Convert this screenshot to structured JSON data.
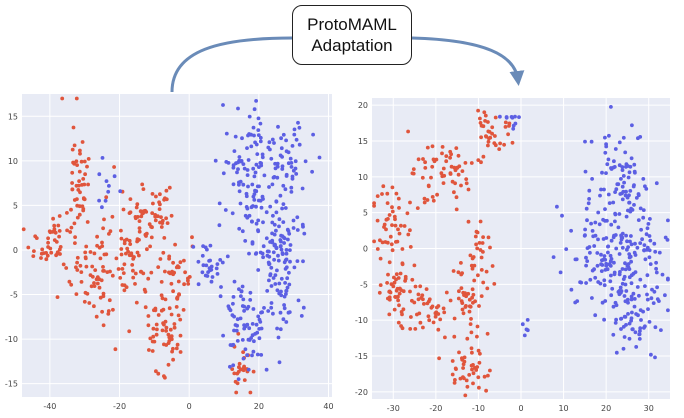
{
  "label": {
    "line1": "ProtoMAML",
    "line2": "Adaptation"
  },
  "colors": {
    "panel_bg": "#e8ebf5",
    "grid": "#ffffff",
    "arrow": "#6a8bb8",
    "class_a": "#e0553c",
    "class_b": "#5c5fe3",
    "tick_text": "#444444"
  },
  "chart_data": [
    {
      "type": "scatter",
      "title": "",
      "xlabel": "",
      "ylabel": "",
      "xlim": [
        -48,
        41
      ],
      "ylim": [
        -16.5,
        17.5
      ],
      "xticks": [
        -40,
        -20,
        0,
        20,
        40
      ],
      "yticks": [
        -15,
        -10,
        -5,
        0,
        5,
        10,
        15
      ],
      "series": [
        {
          "color": "class_a",
          "clusters": [
            {
              "cx": -38,
              "cy": 1,
              "rx": 7,
              "ry": 4,
              "n": 55
            },
            {
              "cx": -32,
              "cy": 8,
              "rx": 3,
              "ry": 7,
              "n": 45
            },
            {
              "cx": -26,
              "cy": -3,
              "rx": 5,
              "ry": 5,
              "n": 55
            },
            {
              "cx": -17,
              "cy": 0,
              "rx": 6,
              "ry": 6,
              "n": 70
            },
            {
              "cx": -10,
              "cy": 4,
              "rx": 5,
              "ry": 3,
              "n": 40
            },
            {
              "cx": -7,
              "cy": -9,
              "rx": 5,
              "ry": 4,
              "n": 55
            },
            {
              "cx": -4,
              "cy": -3,
              "rx": 4,
              "ry": 4,
              "n": 35
            },
            {
              "cx": 15,
              "cy": -13,
              "rx": 3,
              "ry": 3,
              "n": 25
            }
          ]
        },
        {
          "color": "class_b",
          "clusters": [
            {
              "cx": 17,
              "cy": 9,
              "rx": 7,
              "ry": 6,
              "n": 90
            },
            {
              "cx": 25,
              "cy": 0,
              "rx": 8,
              "ry": 8,
              "n": 150
            },
            {
              "cx": 28,
              "cy": 10,
              "rx": 5,
              "ry": 4,
              "n": 40
            },
            {
              "cx": 16,
              "cy": -8,
              "rx": 6,
              "ry": 5,
              "n": 70
            },
            {
              "cx": 6,
              "cy": -2,
              "rx": 4,
              "ry": 3,
              "n": 30
            },
            {
              "cx": -24,
              "cy": 8,
              "rx": 3,
              "ry": 3,
              "n": 10
            }
          ]
        }
      ]
    },
    {
      "type": "scatter",
      "title": "",
      "xlabel": "",
      "ylabel": "",
      "xlim": [
        -35,
        35
      ],
      "ylim": [
        -21,
        21
      ],
      "xticks": [
        -30,
        -20,
        -10,
        0,
        10,
        20,
        30
      ],
      "yticks": [
        -20,
        -15,
        -10,
        -5,
        0,
        5,
        10,
        15,
        20
      ],
      "series": [
        {
          "color": "class_a",
          "clusters": [
            {
              "cx": -18,
              "cy": 10,
              "rx": 7,
              "ry": 4,
              "n": 60
            },
            {
              "cx": -7,
              "cy": 16,
              "rx": 5,
              "ry": 3,
              "n": 35
            },
            {
              "cx": -30,
              "cy": 3,
              "rx": 4,
              "ry": 5,
              "n": 45
            },
            {
              "cx": -29,
              "cy": -6,
              "rx": 4,
              "ry": 5,
              "n": 45
            },
            {
              "cx": -22,
              "cy": -9,
              "rx": 6,
              "ry": 3,
              "n": 40
            },
            {
              "cx": -13,
              "cy": -8,
              "rx": 4,
              "ry": 5,
              "n": 45
            },
            {
              "cx": -12,
              "cy": -17,
              "rx": 5,
              "ry": 3,
              "n": 40
            },
            {
              "cx": -10,
              "cy": 0,
              "rx": 3,
              "ry": 4,
              "n": 25
            }
          ]
        },
        {
          "color": "class_b",
          "clusters": [
            {
              "cx": 24,
              "cy": 10,
              "rx": 6,
              "ry": 6,
              "n": 80
            },
            {
              "cx": 22,
              "cy": -1,
              "rx": 10,
              "ry": 7,
              "n": 180
            },
            {
              "cx": 26,
              "cy": -10,
              "rx": 6,
              "ry": 5,
              "n": 70
            },
            {
              "cx": -3,
              "cy": 18,
              "rx": 2,
              "ry": 2,
              "n": 10
            },
            {
              "cx": 1,
              "cy": -11,
              "rx": 1.5,
              "ry": 1.5,
              "n": 5
            }
          ]
        }
      ]
    }
  ]
}
